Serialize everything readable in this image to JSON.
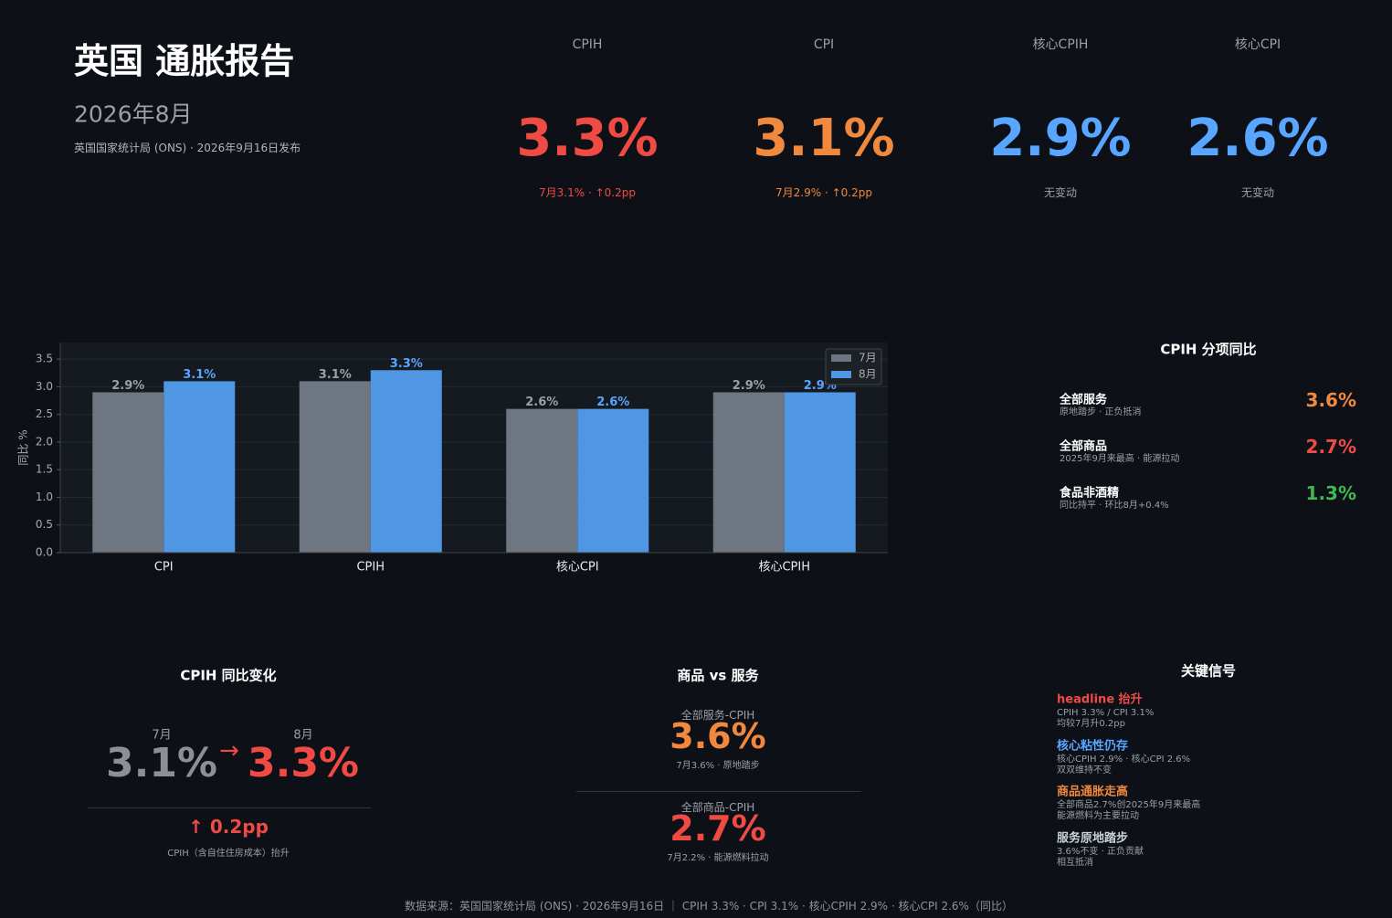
{
  "header": {
    "title": "英国 通胀报告",
    "date": "2026年8月",
    "source": "英国国家统计局 (ONS) · 2026年9月16日发布"
  },
  "kpis": [
    {
      "label": "CPIH",
      "value": "3.3%",
      "note": "7月3.1% · ↑0.2pp",
      "color": "#f04a44",
      "note_color": "#f04a44"
    },
    {
      "label": "CPI",
      "value": "3.1%",
      "note": "7月2.9% · ↑0.2pp",
      "color": "#f0883e",
      "note_color": "#f0883e"
    },
    {
      "label": "核心CPIH",
      "value": "2.9%",
      "note": "无变动",
      "color": "#58a6ff",
      "note_color": "#9aa0a6"
    },
    {
      "label": "核心CPI",
      "value": "2.6%",
      "note": "无变动",
      "color": "#58a6ff",
      "note_color": "#9aa0a6"
    }
  ],
  "chart_data": {
    "type": "bar",
    "ylabel": "同比 %",
    "categories": [
      "CPI",
      "CPIH",
      "核心CPI",
      "核心CPIH"
    ],
    "series": [
      {
        "name": "7月",
        "color": "#6e7681",
        "label_color": "#9aa0a6",
        "values": [
          2.9,
          3.1,
          2.6,
          2.9
        ],
        "value_labels": [
          "2.9%",
          "3.1%",
          "2.6%",
          "2.9%"
        ]
      },
      {
        "name": "8月",
        "color": "#4f96e3",
        "label_color": "#58a6ff",
        "values": [
          3.1,
          3.3,
          2.6,
          2.9
        ],
        "value_labels": [
          "3.1%",
          "3.3%",
          "2.6%",
          "2.9%"
        ]
      }
    ],
    "ylim": [
      0,
      3.8
    ],
    "yticks": [
      {
        "value": 0,
        "label": "0.0"
      },
      0.5,
      {
        "value": 1,
        "label": "1.0"
      },
      1.5,
      {
        "value": 2,
        "label": "2.0"
      },
      2.5,
      {
        "value": 3,
        "label": "3.0"
      },
      3.5
    ],
    "grid": true,
    "legend": "upper right"
  },
  "components": {
    "title": "CPIH 分项同比",
    "items": [
      {
        "name": "全部服务",
        "note": "原地踏步 · 正负抵消",
        "value": "3.6%",
        "color": "#f0883e"
      },
      {
        "name": "全部商品",
        "note": "2025年9月来最高 · 能源拉动",
        "value": "2.7%",
        "color": "#f04a44"
      },
      {
        "name": "食品非酒精",
        "note": "同比持平 · 环比8月+0.4%",
        "value": "1.3%",
        "color": "#3fb950"
      }
    ]
  },
  "change": {
    "title": "CPIH 同比变化",
    "from_label": "7月",
    "from": "3.1%",
    "arrow": "→",
    "to_label": "8月",
    "to": "3.3%",
    "delta": "↑ 0.2pp",
    "note": "CPIH（含自住住房成本）抬升"
  },
  "goods_services": {
    "title": "商品 vs 服务",
    "items": [
      {
        "label": "全部服务-CPIH",
        "value": "3.6%",
        "note": "7月3.6% · 原地踏步",
        "color": "#f0883e"
      },
      {
        "label": "全部商品-CPIH",
        "value": "2.7%",
        "note": "7月2.2% · 能源燃料拉动",
        "color": "#f04a44"
      }
    ]
  },
  "signals": {
    "title": "关键信号",
    "items": [
      {
        "title": "headline 抬升",
        "lines": [
          "CPIH 3.3% / CPI 3.1%",
          "均较7月升0.2pp"
        ],
        "color": "#f04a44"
      },
      {
        "title": "核心粘性仍存",
        "lines": [
          "核心CPIH 2.9% · 核心CPI 2.6%",
          "双双维持不变"
        ],
        "color": "#58a6ff"
      },
      {
        "title": "商品通胀走高",
        "lines": [
          "全部商品2.7%创2025年9月来最高",
          "能源燃料为主要拉动"
        ],
        "color": "#f0883e"
      },
      {
        "title": "服务原地踏步",
        "lines": [
          "3.6%不变 · 正负贡献",
          "相互抵消"
        ],
        "color": "#c9d1d9"
      }
    ]
  },
  "footer": "数据来源：英国国家统计局 (ONS) · 2026年9月16日 ｜ CPIH 3.3% · CPI 3.1% · 核心CPIH 2.9% · 核心CPI 2.6%（同比）"
}
